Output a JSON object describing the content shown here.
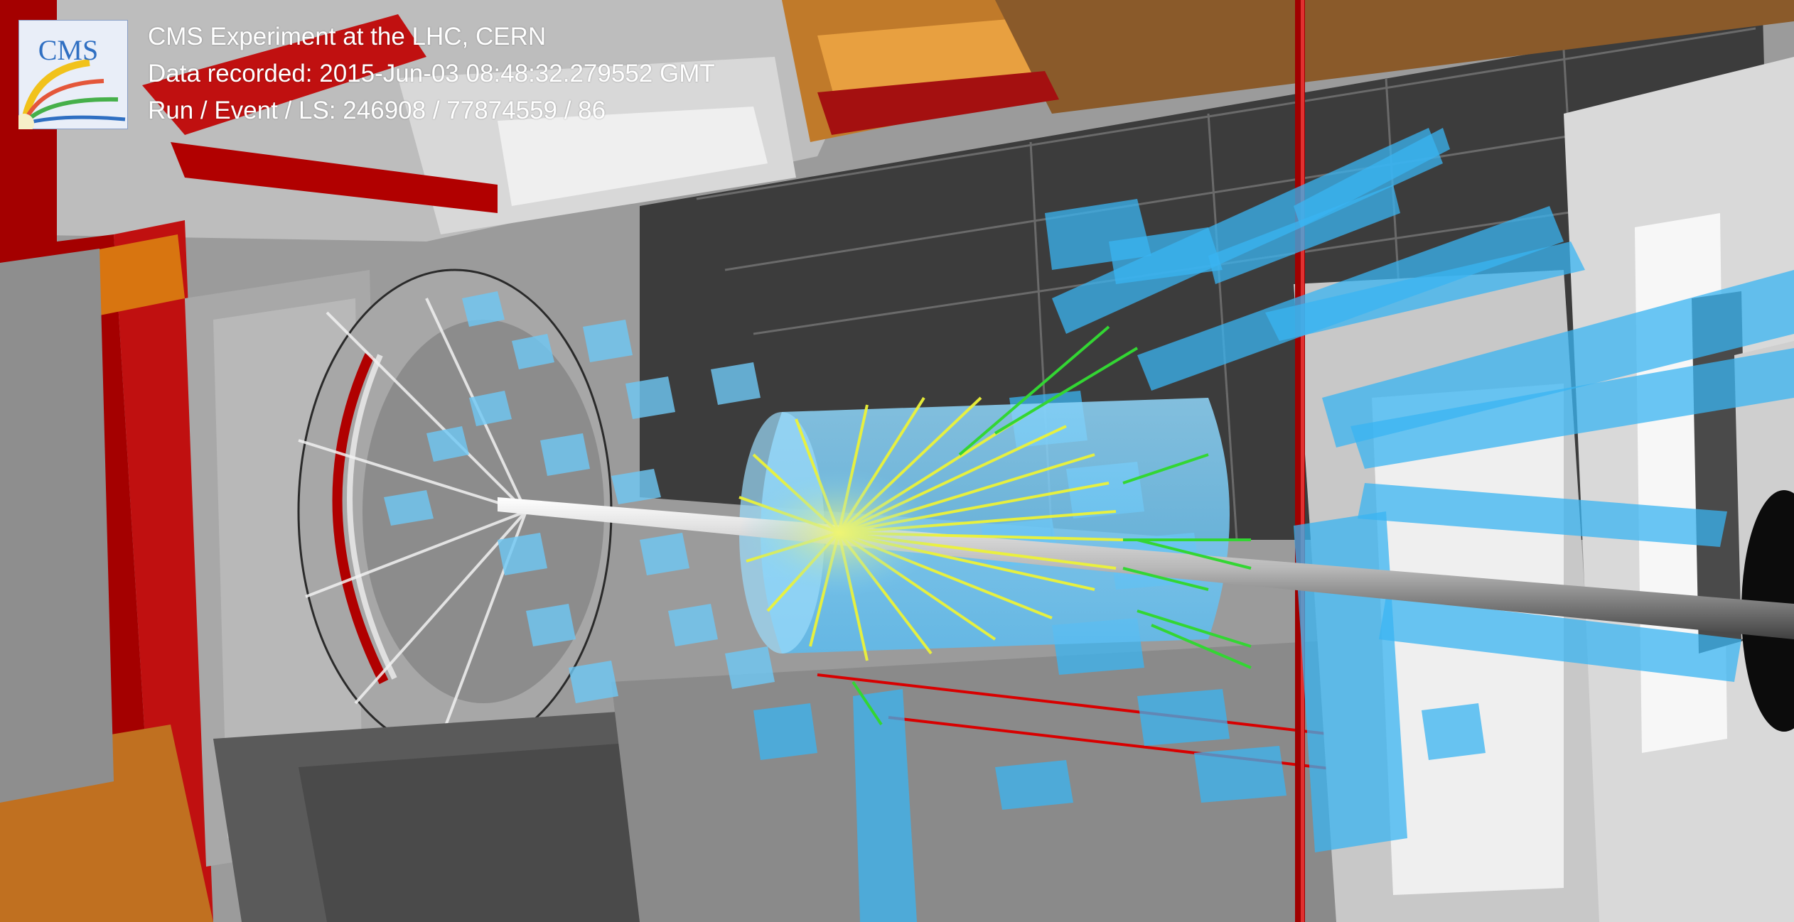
{
  "event_display": {
    "logo_text": "CMS",
    "experiment": "CMS Experiment at the LHC, CERN",
    "data_recorded": "Data recorded: 2015-Jun-03 08:48:32.279552 GMT",
    "run_event_ls": "Run / Event / LS: 246908 / 77874559 / 86"
  },
  "colors": {
    "yoke_red": "#b00000",
    "yoke_orange": "#e07a10",
    "chamber_grey": "#9a9a9a",
    "calo_deposits_blue": "#3ab4f2",
    "tracks_yellow": "#ecf238",
    "tracks_green": "#33d633",
    "logo_blue": "#2f6fc2"
  }
}
